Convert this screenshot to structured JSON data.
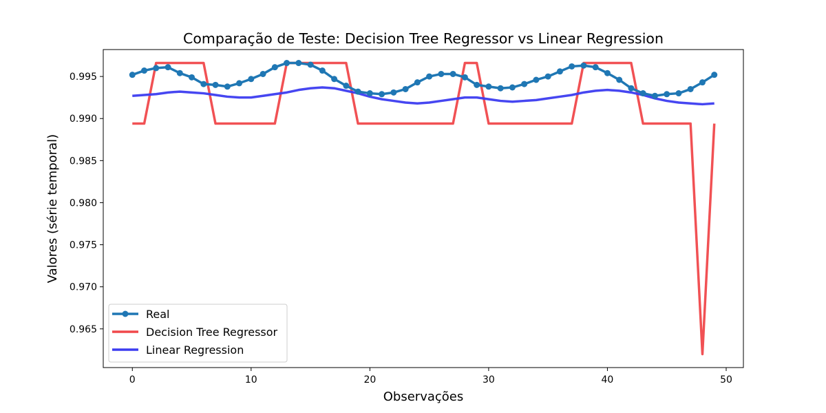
{
  "chart_data": {
    "type": "line",
    "title": "Comparação de Teste: Decision Tree Regressor vs Linear Regression",
    "xlabel": "Observações",
    "ylabel": "Valores (série temporal)",
    "xlim": [
      -2.45,
      51.45
    ],
    "ylim": [
      0.9604,
      0.9982
    ],
    "x_ticks": [
      0,
      10,
      20,
      30,
      40,
      50
    ],
    "y_ticks": [
      0.965,
      0.97,
      0.975,
      0.98,
      0.985,
      0.99,
      0.995
    ],
    "x_tick_labels": [
      "0",
      "10",
      "20",
      "30",
      "40",
      "50"
    ],
    "y_tick_labels": [
      "0.965",
      "0.970",
      "0.975",
      "0.980",
      "0.985",
      "0.990",
      "0.995"
    ],
    "grid": false,
    "legend_position": "lower-left",
    "x": [
      0,
      1,
      2,
      3,
      4,
      5,
      6,
      7,
      8,
      9,
      10,
      11,
      12,
      13,
      14,
      15,
      16,
      17,
      18,
      19,
      20,
      21,
      22,
      23,
      24,
      25,
      26,
      27,
      28,
      29,
      30,
      31,
      32,
      33,
      34,
      35,
      36,
      37,
      38,
      39,
      40,
      41,
      42,
      43,
      44,
      45,
      46,
      47,
      48,
      49
    ],
    "series": [
      {
        "name": "Real",
        "color": "#1f77b4",
        "marker": true,
        "values": [
          0.9952,
          0.9957,
          0.996,
          0.9961,
          0.9954,
          0.9949,
          0.9941,
          0.994,
          0.9938,
          0.9942,
          0.9947,
          0.9953,
          0.9961,
          0.9966,
          0.9966,
          0.9964,
          0.9957,
          0.9947,
          0.9939,
          0.9932,
          0.993,
          0.9929,
          0.9931,
          0.9935,
          0.9943,
          0.995,
          0.9953,
          0.9953,
          0.9949,
          0.994,
          0.9938,
          0.9936,
          0.9937,
          0.9941,
          0.9946,
          0.995,
          0.9956,
          0.9962,
          0.9963,
          0.9961,
          0.9954,
          0.9946,
          0.9936,
          0.993,
          0.9927,
          0.9929,
          0.993,
          0.9935,
          0.9943,
          0.9952
        ]
      },
      {
        "name": "Decision Tree Regressor",
        "color": "#f0484b",
        "marker": false,
        "values": [
          0.9894,
          0.9894,
          0.9966,
          0.9966,
          0.9966,
          0.9966,
          0.9966,
          0.9894,
          0.9894,
          0.9894,
          0.9894,
          0.9894,
          0.9894,
          0.9966,
          0.9966,
          0.9966,
          0.9966,
          0.9966,
          0.9966,
          0.9894,
          0.9894,
          0.9894,
          0.9894,
          0.9894,
          0.9894,
          0.9894,
          0.9894,
          0.9894,
          0.9966,
          0.9966,
          0.9894,
          0.9894,
          0.9894,
          0.9894,
          0.9894,
          0.9894,
          0.9894,
          0.9894,
          0.9966,
          0.9966,
          0.9966,
          0.9966,
          0.9966,
          0.9894,
          0.9894,
          0.9894,
          0.9894,
          0.9894,
          0.962,
          0.9894
        ]
      },
      {
        "name": "Linear Regression",
        "color": "#3c3cf0",
        "marker": false,
        "values": [
          0.9927,
          0.9928,
          0.9929,
          0.9931,
          0.9932,
          0.9931,
          0.993,
          0.9928,
          0.9926,
          0.9925,
          0.9925,
          0.9927,
          0.9929,
          0.9931,
          0.9934,
          0.9936,
          0.9937,
          0.9936,
          0.9933,
          0.993,
          0.9926,
          0.9923,
          0.9921,
          0.9919,
          0.9918,
          0.9919,
          0.9921,
          0.9923,
          0.9925,
          0.9925,
          0.9923,
          0.9921,
          0.992,
          0.9921,
          0.9922,
          0.9924,
          0.9926,
          0.9928,
          0.9931,
          0.9933,
          0.9934,
          0.9933,
          0.9931,
          0.9928,
          0.9924,
          0.9921,
          0.9919,
          0.9918,
          0.9917,
          0.9918
        ]
      }
    ]
  }
}
